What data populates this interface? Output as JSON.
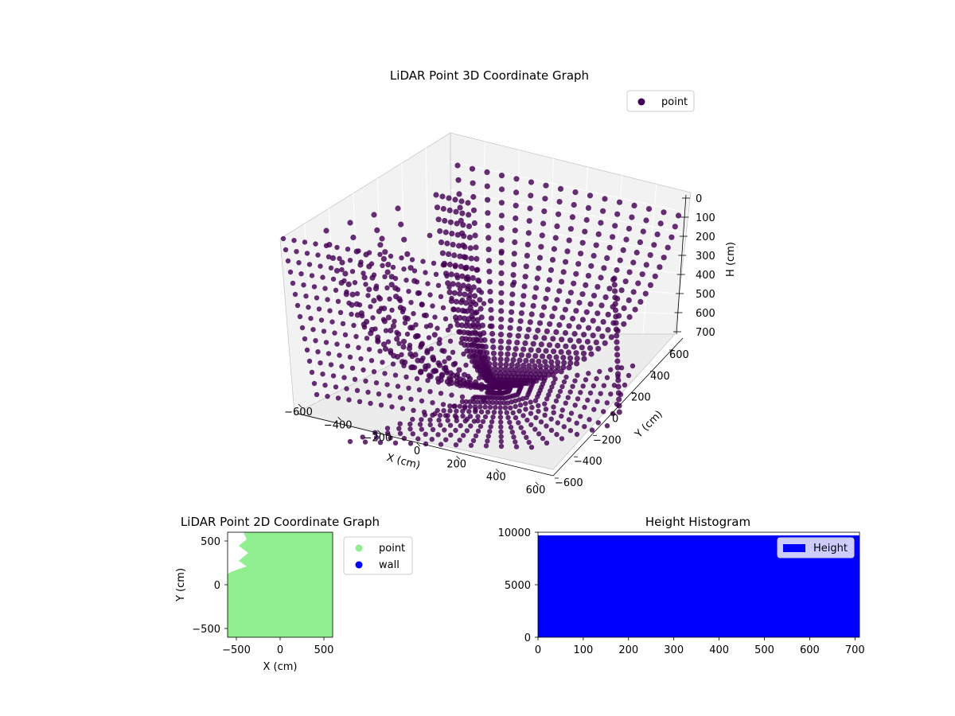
{
  "colors": {
    "point3d": "#440154",
    "point2d": "#90ee90",
    "wall": "#0000ff",
    "hist": "#0000ff",
    "pane": "#f2f2f2",
    "pane_edge": "#c8c8c8"
  },
  "chart_data": [
    {
      "type": "scatter",
      "title": "LiDAR Point 3D Coordinate Graph",
      "xlabel": "X (cm)",
      "ylabel": "Y (cm)",
      "zlabel": "H (cm)",
      "xlim": [
        -600,
        600
      ],
      "ylim": [
        -600,
        600
      ],
      "zlim": [
        700,
        0
      ],
      "z_inverted": true,
      "xticks": [
        "−600",
        "−400",
        "−200",
        "0",
        "200",
        "400",
        "600"
      ],
      "yticks": [
        "−600",
        "−400",
        "−200",
        "0",
        "200",
        "400",
        "600"
      ],
      "zticks": [
        "0",
        "100",
        "200",
        "300",
        "400",
        "500",
        "600",
        "700"
      ],
      "series": [
        {
          "name": "point",
          "color": "#440154",
          "marker": "circle"
        }
      ],
      "legend": "top-right",
      "grid": true
    },
    {
      "type": "scatter",
      "title": "LiDAR Point 2D Coordinate Graph",
      "xlabel": "X (cm)",
      "ylabel": "Y (cm)",
      "xlim": [
        -600,
        600
      ],
      "ylim": [
        -600,
        600
      ],
      "xticks": [
        "−500",
        "0",
        "500"
      ],
      "yticks": [
        "−500",
        "0",
        "500"
      ],
      "series": [
        {
          "name": "point",
          "color": "#90ee90"
        },
        {
          "name": "wall",
          "color": "#0000ff"
        }
      ],
      "legend": "outside-right"
    },
    {
      "type": "bar",
      "title": "Height Histogram",
      "xlim": [
        0,
        710
      ],
      "ylim": [
        0,
        10000
      ],
      "xticks": [
        "0",
        "100",
        "200",
        "300",
        "400",
        "500",
        "600",
        "700"
      ],
      "yticks": [
        "0",
        "5000",
        "10000"
      ],
      "series": [
        {
          "name": "Height",
          "color": "#0000ff",
          "bins": [
            [
              0,
              710
            ]
          ],
          "values": [
            9700
          ]
        }
      ],
      "legend": "top-right"
    }
  ]
}
